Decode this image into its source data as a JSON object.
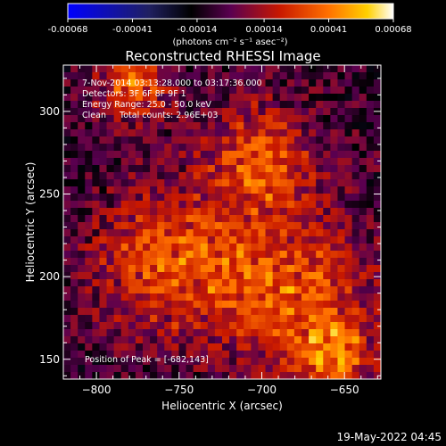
{
  "chart_data": {
    "type": "heatmap",
    "title": "Reconstructed RHESSI Image",
    "xlabel": "Heliocentric X (arcsec)",
    "ylabel": "Heliocentric Y (arcsec)",
    "xlim": [
      -820,
      -628
    ],
    "ylim": [
      138,
      328
    ],
    "xticks": [
      -800,
      -750,
      -700,
      -650
    ],
    "yticks": [
      150,
      200,
      250,
      300
    ],
    "colorbar": {
      "ticks": [
        -0.00068,
        -0.00041,
        -0.00014,
        0.00014,
        0.00041,
        0.00068
      ],
      "tick_labels": [
        "-0.00068",
        "-0.00041",
        "-0.00014",
        "0.00014",
        "0.00041",
        "0.00068"
      ],
      "unit_label": "(photons cm⁻² s⁻¹ asec⁻²)",
      "range": [
        -0.00068,
        0.00068
      ]
    },
    "annotations": [
      "7-Nov-2014 03:13:28.000 to 03:17:36.000",
      "Detectors: 3F 6F 8F 9F 1",
      "Energy Range: 25.0 - 50.0 keV",
      "Clean     Total counts: 2.96E+03"
    ],
    "peak_label": "Position of Peak = [-682,143]",
    "grid": false
  },
  "footer": {
    "timestamp": "19-May-2022 04:45"
  }
}
